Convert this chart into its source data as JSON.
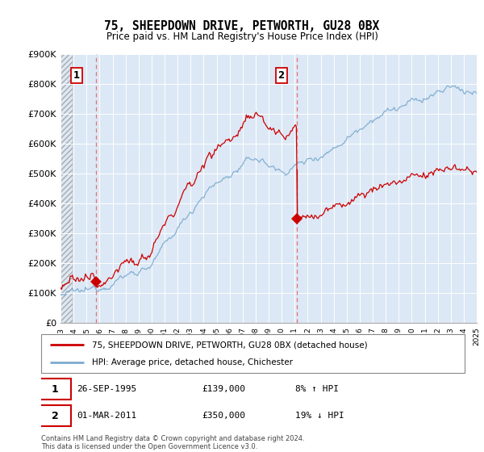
{
  "title": "75, SHEEPDOWN DRIVE, PETWORTH, GU28 0BX",
  "subtitle": "Price paid vs. HM Land Registry's House Price Index (HPI)",
  "ylabel_ticks": [
    "£0",
    "£100K",
    "£200K",
    "£300K",
    "£400K",
    "£500K",
    "£600K",
    "£700K",
    "£800K",
    "£900K"
  ],
  "ylim": [
    0,
    900000
  ],
  "yticks": [
    0,
    100000,
    200000,
    300000,
    400000,
    500000,
    600000,
    700000,
    800000,
    900000
  ],
  "legend_line1": "75, SHEEPDOWN DRIVE, PETWORTH, GU28 0BX (detached house)",
  "legend_line2": "HPI: Average price, detached house, Chichester",
  "annotation1_label": "1",
  "annotation1_date": "26-SEP-1995",
  "annotation1_price": "£139,000",
  "annotation1_hpi": "8% ↑ HPI",
  "annotation2_label": "2",
  "annotation2_date": "01-MAR-2011",
  "annotation2_price": "£350,000",
  "annotation2_hpi": "19% ↓ HPI",
  "footer": "Contains HM Land Registry data © Crown copyright and database right 2024.\nThis data is licensed under the Open Government Licence v3.0.",
  "house_color": "#cc0000",
  "hpi_color": "#7aaad0",
  "point1_x": 1995.75,
  "point1_y": 139000,
  "point2_x": 2011.17,
  "point2_y": 350000,
  "xmin": 1993,
  "xmax": 2025
}
